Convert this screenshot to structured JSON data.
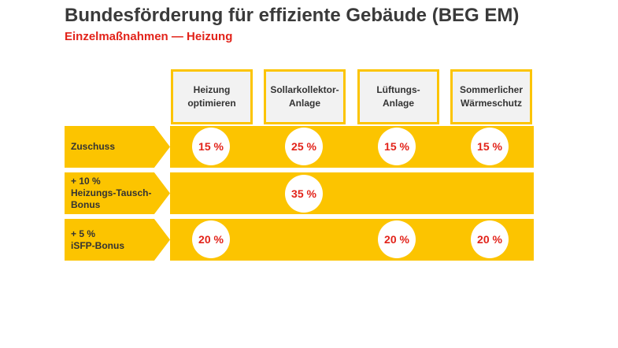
{
  "header": {
    "title": "Bundesförderung für effiziente Gebäude (BEG EM)",
    "subtitle": "Einzelmaßnahmen — Heizung"
  },
  "columns": [
    "Heizung\noptimieren",
    "Sollarkollektor-\nAnlage",
    "Lüftungs-\nAnlage",
    "Sommerlicher\nWärmeschutz"
  ],
  "rows": [
    {
      "label": "Zuschuss",
      "values": [
        "15 %",
        "25 %",
        "15 %",
        "15 %"
      ]
    },
    {
      "label": "+ 10 %\nHeizungs-Tausch-\nBonus",
      "values": [
        "",
        "35 %",
        "",
        ""
      ]
    },
    {
      "label": "+ 5 %\niSFP-Bonus",
      "values": [
        "20 %",
        "",
        "20 %",
        "20 %"
      ]
    }
  ],
  "colors": {
    "accent_yellow": "#fcc400",
    "accent_red": "#e2231a",
    "header_bg": "#f2f2f2",
    "text": "#3a3a3a"
  }
}
